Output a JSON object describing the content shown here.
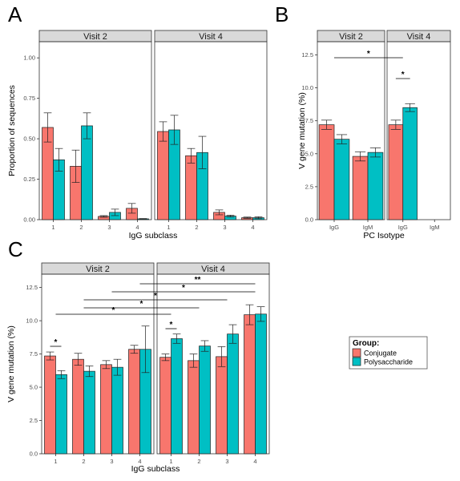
{
  "chart_data": [
    {
      "panel": "A",
      "type": "bar",
      "xlabel": "IgG subclass",
      "ylabel": "Proportion of sequences",
      "ylim": [
        0,
        1.1
      ],
      "yticks": [
        "0.00",
        "0.25",
        "0.50",
        "0.75",
        "1.00"
      ],
      "ytick_values": [
        0,
        0.25,
        0.5,
        0.75,
        1.0
      ],
      "facets": [
        {
          "label": "Visit 2",
          "categories": [
            "1",
            "2",
            "3",
            "4"
          ],
          "series": [
            {
              "name": "Conjugate",
              "values": [
                0.57,
                0.33,
                0.02,
                0.07
              ],
              "err": [
                0.09,
                0.1,
                0.005,
                0.03
              ]
            },
            {
              "name": "Polysaccharide",
              "values": [
                0.37,
                0.58,
                0.045,
                0.005
              ],
              "err": [
                0.07,
                0.08,
                0.02,
                0.002
              ]
            }
          ]
        },
        {
          "label": "Visit 4",
          "categories": [
            "1",
            "2",
            "3",
            "4"
          ],
          "series": [
            {
              "name": "Conjugate",
              "values": [
                0.545,
                0.395,
                0.045,
                0.012
              ],
              "err": [
                0.06,
                0.045,
                0.015,
                0.004
              ]
            },
            {
              "name": "Polysaccharide",
              "values": [
                0.555,
                0.415,
                0.022,
                0.012
              ],
              "err": [
                0.09,
                0.1,
                0.006,
                0.006
              ]
            }
          ]
        }
      ],
      "significance": []
    },
    {
      "panel": "B",
      "type": "bar",
      "xlabel": "PC Isotype",
      "ylabel": "V gene mutation (%)",
      "ylim": [
        0,
        13.5
      ],
      "yticks": [
        "0.0",
        "2.5",
        "5.0",
        "7.5",
        "10.0",
        "12.5"
      ],
      "ytick_values": [
        0,
        2.5,
        5,
        7.5,
        10,
        12.5
      ],
      "facets": [
        {
          "label": "Visit 2",
          "categories": [
            "IgG",
            "IgM"
          ],
          "series": [
            {
              "name": "Conjugate",
              "values": [
                7.2,
                4.8
              ],
              "err": [
                0.35,
                0.35
              ]
            },
            {
              "name": "Polysaccharide",
              "values": [
                6.1,
                5.1
              ],
              "err": [
                0.35,
                0.35
              ]
            }
          ]
        },
        {
          "label": "Visit 4",
          "categories": [
            "IgG",
            "IgM"
          ],
          "series": [
            {
              "name": "Conjugate",
              "values": [
                7.2,
                null
              ],
              "err": [
                0.35,
                null
              ]
            },
            {
              "name": "Polysaccharide",
              "values": [
                8.5,
                null
              ],
              "err": [
                0.3,
                null
              ]
            }
          ]
        }
      ],
      "significance": [
        {
          "label": "*",
          "from": "Visit 2 · IgG",
          "to": "Visit 4 · IgG"
        },
        {
          "label": "*",
          "from": "Visit 4 · IgG · Conjugate",
          "to": "Visit 4 · IgG · Polysaccharide"
        }
      ]
    },
    {
      "panel": "C",
      "type": "bar",
      "xlabel": "IgG subclass",
      "ylabel": "V gene mutation (%)",
      "ylim": [
        0,
        13.5
      ],
      "yticks": [
        "0.0",
        "2.5",
        "5.0",
        "7.5",
        "10.0",
        "12.5"
      ],
      "ytick_values": [
        0,
        2.5,
        5,
        7.5,
        10,
        12.5
      ],
      "facets": [
        {
          "label": "Visit 2",
          "categories": [
            "1",
            "2",
            "3",
            "4"
          ],
          "series": [
            {
              "name": "Conjugate",
              "values": [
                7.35,
                7.1,
                6.7,
                7.85
              ],
              "err": [
                0.3,
                0.45,
                0.3,
                0.3
              ]
            },
            {
              "name": "Polysaccharide",
              "values": [
                5.95,
                6.2,
                6.5,
                7.85
              ],
              "err": [
                0.3,
                0.4,
                0.6,
                1.75
              ]
            }
          ]
        },
        {
          "label": "Visit 4",
          "categories": [
            "1",
            "2",
            "3",
            "4"
          ],
          "series": [
            {
              "name": "Conjugate",
              "values": [
                7.25,
                7.0,
                7.3,
                10.45
              ],
              "err": [
                0.25,
                0.5,
                0.75,
                0.75
              ]
            },
            {
              "name": "Polysaccharide",
              "values": [
                8.65,
                8.1,
                9.0,
                10.5
              ],
              "err": [
                0.35,
                0.4,
                0.7,
                0.55
              ]
            }
          ]
        }
      ],
      "significance": [
        {
          "label": "**",
          "from": "Visit 2 · 4",
          "to": "Visit 4 · 4"
        },
        {
          "label": "*",
          "from": "Visit 2 · 3",
          "to": "Visit 4 · 4"
        },
        {
          "label": "*",
          "from": "Visit 2 · 2",
          "to": "Visit 4 · 3"
        },
        {
          "label": "*",
          "from": "Visit 2 · 2",
          "to": "Visit 4 · 2"
        },
        {
          "label": "*",
          "from": "Visit 2 · 1",
          "to": "Visit 4 · 1"
        },
        {
          "label": "*",
          "from": "Visit 2 · 1 · Conjugate",
          "to": "Visit 2 · 1 · Polysaccharide"
        },
        {
          "label": "*",
          "from": "Visit 4 · 1 · Conjugate",
          "to": "Visit 4 · 1 · Polysaccharide"
        }
      ]
    }
  ],
  "panel_letters": [
    "A",
    "B",
    "C"
  ],
  "legend": {
    "title": "Group:",
    "items": [
      {
        "label": "Conjugate",
        "color": "#F8766D"
      },
      {
        "label": "Polysaccharide",
        "color": "#00BFC4"
      }
    ]
  },
  "colors": {
    "conjugate": "#F8766D",
    "polysaccharide": "#00BFC4",
    "strip": "#d9d9d9"
  }
}
